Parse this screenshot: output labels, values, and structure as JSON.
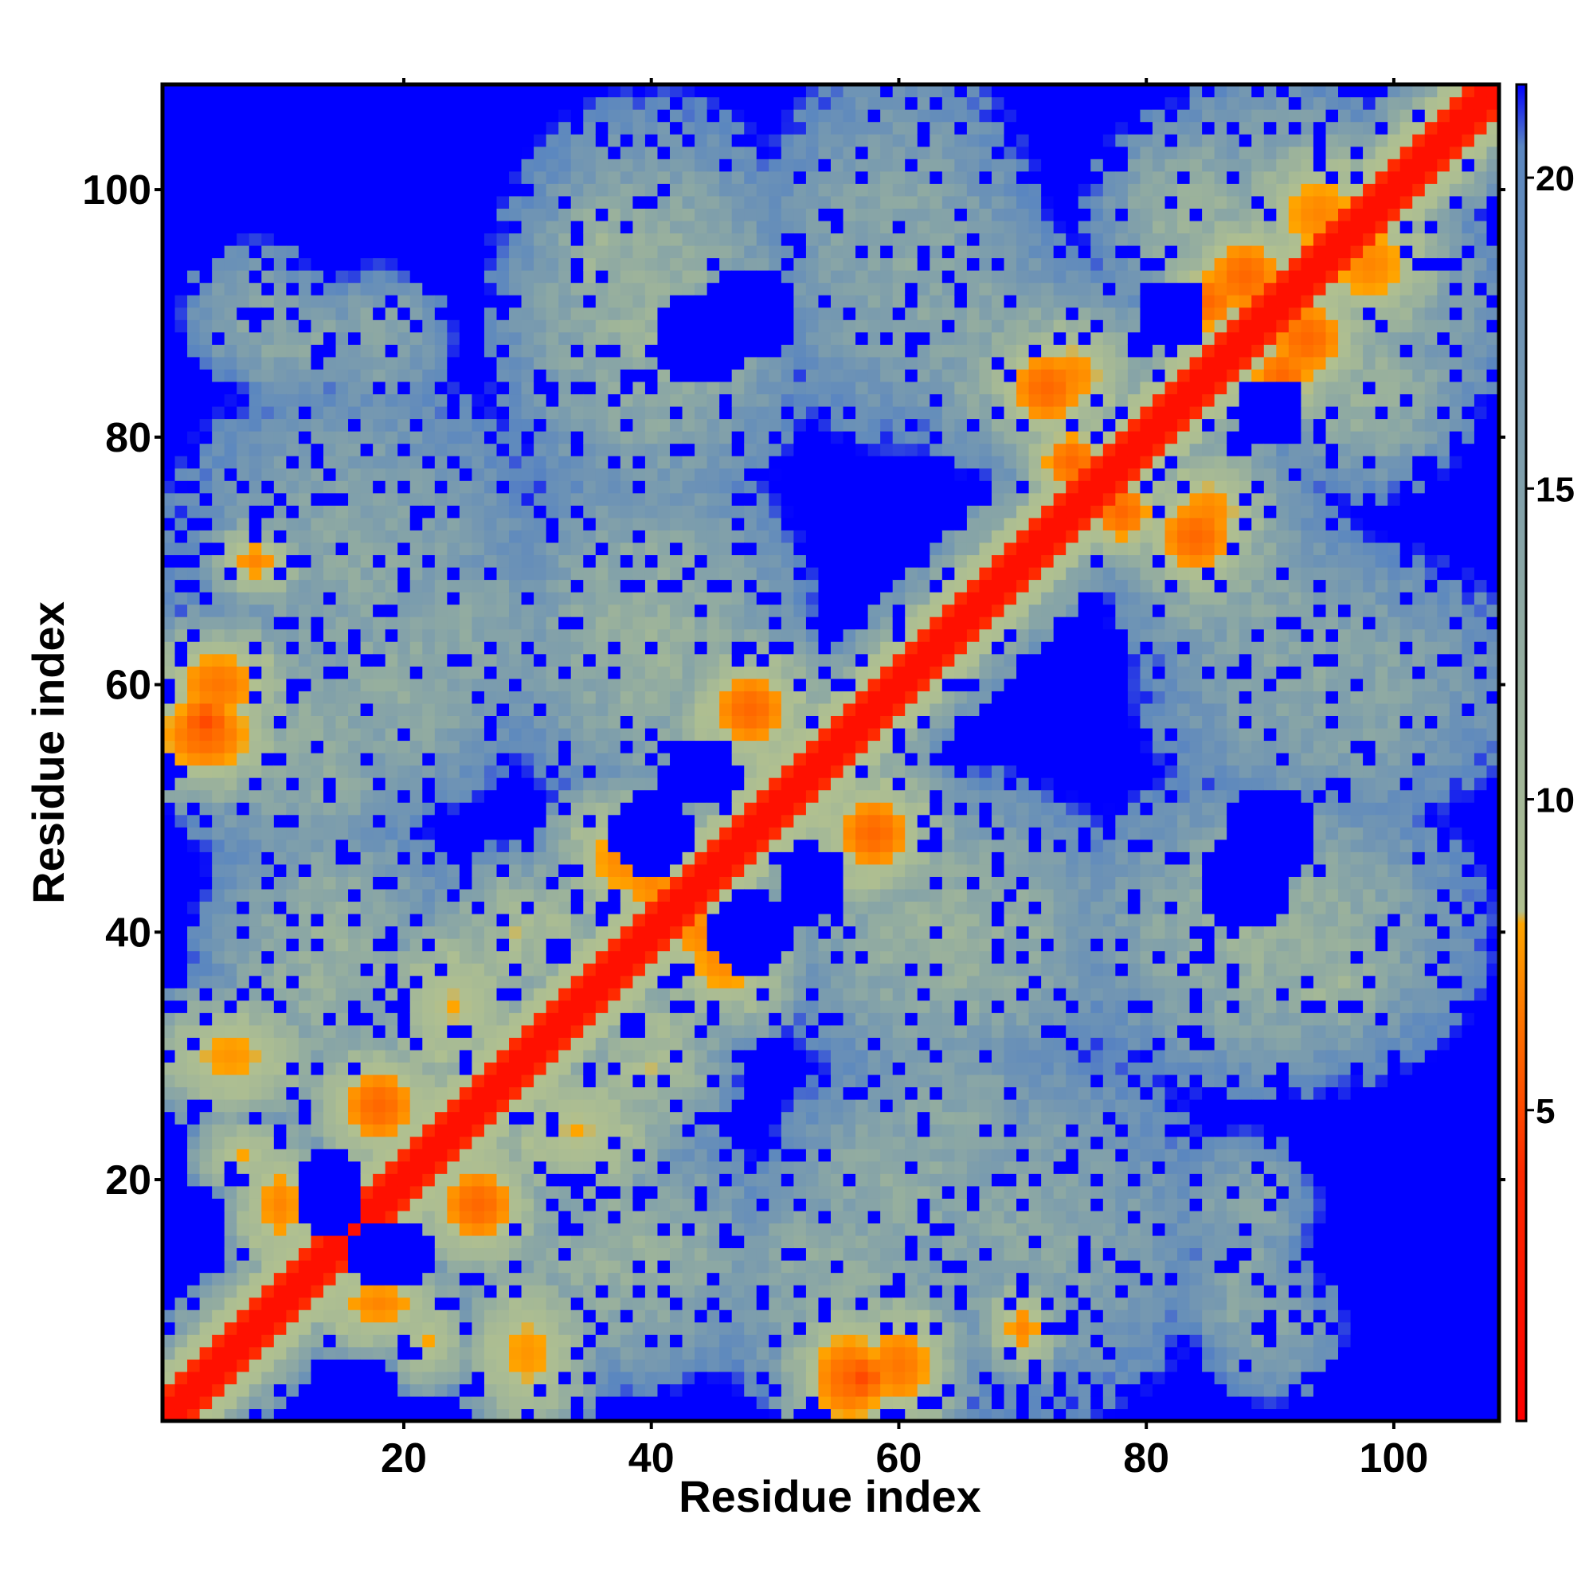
{
  "chart_data": {
    "type": "heatmap",
    "title": "",
    "xlabel": "Residue index",
    "ylabel": "Residue index",
    "n": 108,
    "xlim": [
      0.5,
      108.5
    ],
    "ylim": [
      0.5,
      108.5
    ],
    "x_ticks": [
      20,
      40,
      60,
      80,
      100
    ],
    "y_ticks": [
      20,
      40,
      60,
      80,
      100
    ],
    "grid": false,
    "colorbar": {
      "ticks": [
        5,
        10,
        15,
        20
      ],
      "range": [
        0,
        21.5
      ],
      "stops": [
        {
          "value": 0,
          "color": "#ff0000"
        },
        {
          "value": 4,
          "color": "#ff2a00"
        },
        {
          "value": 8,
          "color": "#ffa500"
        },
        {
          "value": 8.2,
          "color": "#b0c090"
        },
        {
          "value": 20.5,
          "color": "#5a86c0"
        },
        {
          "value": 21.5,
          "color": "#0000ff"
        }
      ]
    },
    "value_description": "distance matrix between residues (symmetric); values >= 20.5 rendered as saturated blue",
    "blobs": [
      {
        "i": 6,
        "j": 30,
        "a": 7,
        "b": 5,
        "d": 7.5
      },
      {
        "i": 7,
        "j": 22,
        "a": 4,
        "b": 3,
        "d": 8
      },
      {
        "i": 5,
        "j": 60,
        "a": 6,
        "b": 5,
        "d": 6.5
      },
      {
        "i": 8,
        "j": 70,
        "a": 4,
        "b": 3,
        "d": 7
      },
      {
        "i": 14,
        "j": 38,
        "a": 10,
        "b": 12,
        "d": 12
      },
      {
        "i": 10,
        "j": 18,
        "a": 4,
        "b": 6,
        "d": 7
      },
      {
        "i": 18,
        "j": 26,
        "a": 5,
        "b": 5,
        "d": 6
      },
      {
        "i": 24,
        "j": 34,
        "a": 6,
        "b": 7,
        "d": 8
      },
      {
        "i": 30,
        "j": 40,
        "a": 8,
        "b": 6,
        "d": 10
      },
      {
        "i": 12,
        "j": 55,
        "a": 11,
        "b": 11,
        "d": 13
      },
      {
        "i": 8,
        "j": 90,
        "a": 6,
        "b": 6,
        "d": 14
      },
      {
        "i": 18,
        "j": 88,
        "a": 6,
        "b": 6,
        "d": 14
      },
      {
        "i": 40,
        "j": 90,
        "a": 12,
        "b": 16,
        "d": 12
      },
      {
        "i": 40,
        "j": 64,
        "a": 12,
        "b": 14,
        "d": 12
      },
      {
        "i": 38,
        "j": 46,
        "a": 6,
        "b": 6,
        "d": 7
      },
      {
        "i": 48,
        "j": 58,
        "a": 6,
        "b": 6,
        "d": 7
      },
      {
        "i": 44,
        "j": 40,
        "a": 5,
        "b": 5,
        "d": 7
      },
      {
        "i": 58,
        "j": 48,
        "a": 5,
        "b": 5,
        "d": 6
      },
      {
        "i": 56,
        "j": 4,
        "a": 5,
        "b": 6,
        "d": 6
      },
      {
        "i": 60,
        "j": 20,
        "a": 10,
        "b": 10,
        "d": 13
      },
      {
        "i": 70,
        "j": 16,
        "a": 16,
        "b": 16,
        "d": 14
      },
      {
        "i": 60,
        "j": 95,
        "a": 12,
        "b": 16,
        "d": 14
      },
      {
        "i": 72,
        "j": 85,
        "a": 10,
        "b": 8,
        "d": 11
      },
      {
        "i": 78,
        "j": 74,
        "a": 4,
        "b": 4,
        "d": 6
      },
      {
        "i": 84,
        "j": 72,
        "a": 5,
        "b": 5,
        "d": 6
      },
      {
        "i": 88,
        "j": 93,
        "a": 5,
        "b": 5,
        "d": 6
      },
      {
        "i": 74,
        "j": 85,
        "a": 5,
        "b": 5,
        "d": 7
      },
      {
        "i": 91,
        "j": 85,
        "a": 4,
        "b": 4,
        "d": 6
      },
      {
        "i": 94,
        "j": 98,
        "a": 6,
        "b": 6,
        "d": 7
      },
      {
        "i": 90,
        "j": 40,
        "a": 11,
        "b": 8,
        "d": 14
      },
      {
        "i": 95,
        "j": 36,
        "a": 6,
        "b": 5,
        "d": 11
      },
      {
        "i": 97,
        "j": 60,
        "a": 8,
        "b": 8,
        "d": 15
      },
      {
        "i": 90,
        "j": 64,
        "a": 10,
        "b": 12,
        "d": 14
      },
      {
        "i": 88,
        "j": 10,
        "a": 5,
        "b": 5,
        "d": 14
      },
      {
        "i": 12,
        "j": 88,
        "a": 6,
        "b": 5,
        "d": 14
      },
      {
        "i": 4,
        "j": 57,
        "a": 3,
        "b": 3,
        "d": 5
      },
      {
        "i": 24,
        "j": 64,
        "a": 14,
        "b": 10,
        "d": 14
      },
      {
        "i": 104,
        "j": 90,
        "a": 6,
        "b": 10,
        "d": 15
      },
      {
        "i": 98,
        "j": 84,
        "a": 8,
        "b": 8,
        "d": 12
      }
    ],
    "holes": [
      {
        "i": 18,
        "j": 14,
        "r": 2.5
      },
      {
        "i": 14,
        "j": 20,
        "r": 2.5
      },
      {
        "i": 48,
        "j": 40,
        "r": 3.5
      },
      {
        "i": 44,
        "j": 53,
        "r": 3
      },
      {
        "i": 90,
        "j": 82,
        "r": 3
      },
      {
        "i": 82,
        "j": 90,
        "r": 3
      },
      {
        "i": 90,
        "j": 48,
        "r": 4
      },
      {
        "i": 44,
        "j": 88,
        "r": 4
      }
    ]
  }
}
